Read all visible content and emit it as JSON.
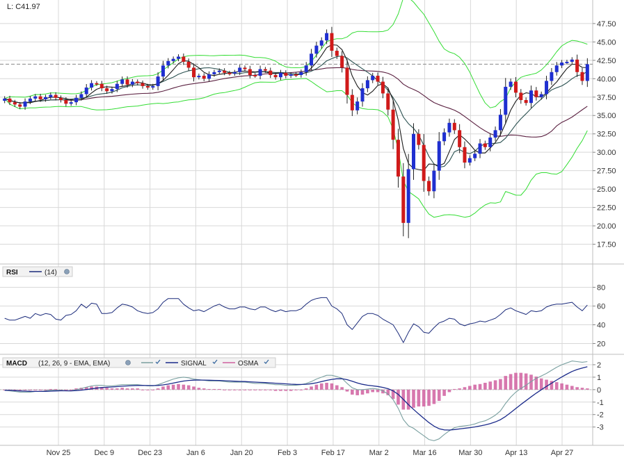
{
  "colors": {
    "up": "#1f2fd0",
    "down": "#d01a1a",
    "bollinger": "#33dd33",
    "ma_short": "#1a1a1a",
    "ma_mid": "#2a5050",
    "ma_long": "#5a2040",
    "rsi": "#1a2a7a",
    "macd": "#7aa0a0",
    "signal": "#1a2a8a",
    "osma": "#d060a0",
    "grid": "#d8d8d8"
  },
  "price_panel": {
    "last_label": "L: C41.97",
    "last_value": 41.97,
    "y_ticks": [
      "47.50",
      "45.00",
      "42.50",
      "40.00",
      "37.50",
      "35.00",
      "32.50",
      "30.00",
      "27.50",
      "25.00",
      "22.50",
      "20.00",
      "17.50"
    ]
  },
  "rsi_panel": {
    "title": "RSI",
    "period": "(14)",
    "settings_icon": "gear-icon",
    "y_ticks": [
      "80",
      "60",
      "40",
      "20"
    ]
  },
  "macd_panel": {
    "title": "MACD",
    "params": "(12, 26, 9 - EMA, EMA)",
    "signal_label": "SIGNAL",
    "osma_label": "OSMA",
    "check_icon": "check-icon",
    "settings_icon": "gear-icon",
    "y_ticks": [
      "2",
      "1",
      "0",
      "-1",
      "-2",
      "-3"
    ]
  },
  "x_axis": {
    "labels": [
      "Nov 25",
      "Dec 9",
      "Dec 23",
      "Jan 6",
      "Jan 20",
      "Feb 3",
      "Feb 17",
      "Mar 2",
      "Mar 16",
      "Mar 30",
      "Apr 13",
      "Apr 27"
    ]
  },
  "chart_data": [
    {
      "type": "candlestick",
      "ylim": [
        15,
        49
      ],
      "y_ticks": [
        47.5,
        45,
        42.5,
        40,
        37.5,
        35,
        32.5,
        30,
        27.5,
        25,
        22.5,
        20,
        17.5
      ],
      "last_close": 41.97,
      "grid": true,
      "overlays": [
        "Bollinger Bands",
        "moving averages (3)"
      ],
      "close": [
        37.3,
        36.8,
        36.5,
        36.2,
        36.9,
        37.3,
        37.6,
        37.2,
        37.5,
        37.8,
        37.4,
        37.1,
        36.6,
        36.8,
        37.4,
        37.9,
        38.8,
        39.4,
        39.3,
        38.7,
        38.3,
        38.6,
        39.3,
        39.9,
        39.2,
        39.6,
        39.4,
        39.0,
        38.8,
        39.0,
        40.3,
        41.8,
        42.4,
        42.7,
        43.0,
        42.3,
        41.5,
        40.2,
        40.4,
        40.0,
        40.6,
        40.9,
        41.1,
        40.8,
        40.7,
        40.9,
        41.5,
        41.3,
        40.5,
        40.4,
        41.3,
        41.1,
        40.5,
        40.2,
        40.8,
        40.4,
        40.6,
        40.5,
        40.9,
        41.8,
        43.4,
        44.5,
        45.2,
        46.2,
        43.8,
        43.1,
        41.5,
        37.8,
        35.7,
        36.9,
        38.7,
        39.8,
        40.4,
        39.6,
        38.0,
        35.8,
        31.7,
        26.7,
        20.4,
        27.7,
        32.5,
        31.0,
        26.1,
        24.7,
        27.5,
        31.5,
        32.7,
        34.0,
        33.0,
        30.7,
        28.6,
        29.2,
        29.8,
        31.2,
        30.7,
        32.0,
        33.0,
        35.1,
        38.9,
        39.6,
        38.1,
        37.1,
        36.7,
        38.4,
        37.5,
        37.9,
        39.7,
        40.9,
        41.8,
        42.2,
        42.3,
        42.6,
        40.9,
        39.7,
        41.97
      ]
    },
    {
      "type": "line",
      "name": "RSI",
      "ylim": [
        10,
        90
      ],
      "y_ticks": [
        80,
        60,
        40,
        20
      ],
      "values": [
        47,
        45,
        45,
        47,
        49,
        47,
        52,
        50,
        52,
        51,
        46,
        45,
        50,
        51,
        55,
        62,
        58,
        63,
        62,
        52,
        52,
        53,
        58,
        62,
        61,
        59,
        55,
        53,
        52,
        53,
        57,
        64,
        68,
        68,
        68,
        62,
        58,
        55,
        56,
        54,
        57,
        60,
        62,
        59,
        57,
        57,
        59,
        59,
        57,
        56,
        59,
        59,
        56,
        54,
        56,
        54,
        55,
        55,
        57,
        62,
        66,
        68,
        69,
        69,
        60,
        57,
        52,
        40,
        35,
        42,
        49,
        52,
        52,
        50,
        46,
        43,
        40,
        31,
        21,
        32,
        41,
        38,
        32,
        31,
        37,
        42,
        44,
        47,
        46,
        41,
        39,
        41,
        42,
        44,
        43,
        45,
        47,
        51,
        56,
        58,
        55,
        53,
        51,
        55,
        54,
        55,
        59,
        61,
        62,
        62,
        63,
        64,
        59,
        55,
        61
      ]
    },
    {
      "type": "line",
      "name": "MACD",
      "ylim": [
        -4.3,
        2.5
      ],
      "y_ticks": [
        2,
        1,
        0,
        -1,
        -2,
        -3
      ],
      "macd": [
        -0.05,
        -0.1,
        -0.15,
        -0.2,
        -0.2,
        -0.2,
        -0.15,
        -0.15,
        -0.1,
        -0.05,
        -0.05,
        -0.05,
        -0.1,
        -0.1,
        0.0,
        0.1,
        0.2,
        0.3,
        0.35,
        0.35,
        0.3,
        0.3,
        0.35,
        0.4,
        0.4,
        0.4,
        0.4,
        0.35,
        0.3,
        0.3,
        0.4,
        0.55,
        0.7,
        0.85,
        0.95,
        1.0,
        0.95,
        0.85,
        0.8,
        0.75,
        0.7,
        0.7,
        0.7,
        0.65,
        0.6,
        0.6,
        0.6,
        0.6,
        0.55,
        0.5,
        0.5,
        0.5,
        0.45,
        0.4,
        0.4,
        0.35,
        0.35,
        0.35,
        0.4,
        0.5,
        0.65,
        0.85,
        1.0,
        1.15,
        1.15,
        1.05,
        0.9,
        0.5,
        0.15,
        0.0,
        0.0,
        0.05,
        0.1,
        0.05,
        -0.1,
        -0.35,
        -0.8,
        -1.5,
        -2.4,
        -2.9,
        -3.1,
        -3.4,
        -3.7,
        -4.0,
        -4.1,
        -3.95,
        -3.6,
        -3.3,
        -3.05,
        -2.95,
        -2.9,
        -2.85,
        -2.75,
        -2.6,
        -2.5,
        -2.3,
        -2.05,
        -1.7,
        -1.1,
        -0.6,
        -0.2,
        0.1,
        0.35,
        0.65,
        0.9,
        1.1,
        1.3,
        1.55,
        1.8,
        2.0,
        2.15,
        2.3,
        2.25,
        2.2,
        2.25
      ]
    },
    {
      "type": "bar",
      "name": "OSMA",
      "values": [
        0.0,
        0.0,
        -0.05,
        -0.05,
        -0.05,
        -0.05,
        0.0,
        0.0,
        0.0,
        0.05,
        0.05,
        0.0,
        0.0,
        0.0,
        0.1,
        0.15,
        0.2,
        0.25,
        0.25,
        0.2,
        0.15,
        0.1,
        0.1,
        0.15,
        0.1,
        0.1,
        0.1,
        0.0,
        -0.05,
        0.0,
        0.1,
        0.25,
        0.35,
        0.4,
        0.45,
        0.4,
        0.35,
        0.25,
        0.15,
        0.1,
        0.05,
        0.05,
        0.05,
        0.0,
        -0.05,
        -0.05,
        -0.05,
        0.0,
        -0.05,
        -0.05,
        -0.05,
        -0.05,
        -0.05,
        -0.1,
        -0.1,
        -0.1,
        -0.1,
        -0.05,
        0.0,
        0.1,
        0.25,
        0.4,
        0.5,
        0.55,
        0.5,
        0.35,
        0.2,
        -0.15,
        -0.4,
        -0.45,
        -0.4,
        -0.3,
        -0.2,
        -0.2,
        -0.3,
        -0.45,
        -0.75,
        -1.2,
        -1.6,
        -1.6,
        -1.45,
        -1.35,
        -1.35,
        -1.3,
        -1.15,
        -0.9,
        -0.5,
        -0.2,
        0.05,
        0.1,
        0.2,
        0.3,
        0.4,
        0.45,
        0.55,
        0.65,
        0.75,
        0.85,
        1.1,
        1.25,
        1.35,
        1.35,
        1.3,
        1.2,
        1.05,
        0.9,
        0.8,
        0.7,
        0.6,
        0.5,
        0.4,
        0.3,
        0.2,
        0.15,
        0.1
      ]
    }
  ]
}
